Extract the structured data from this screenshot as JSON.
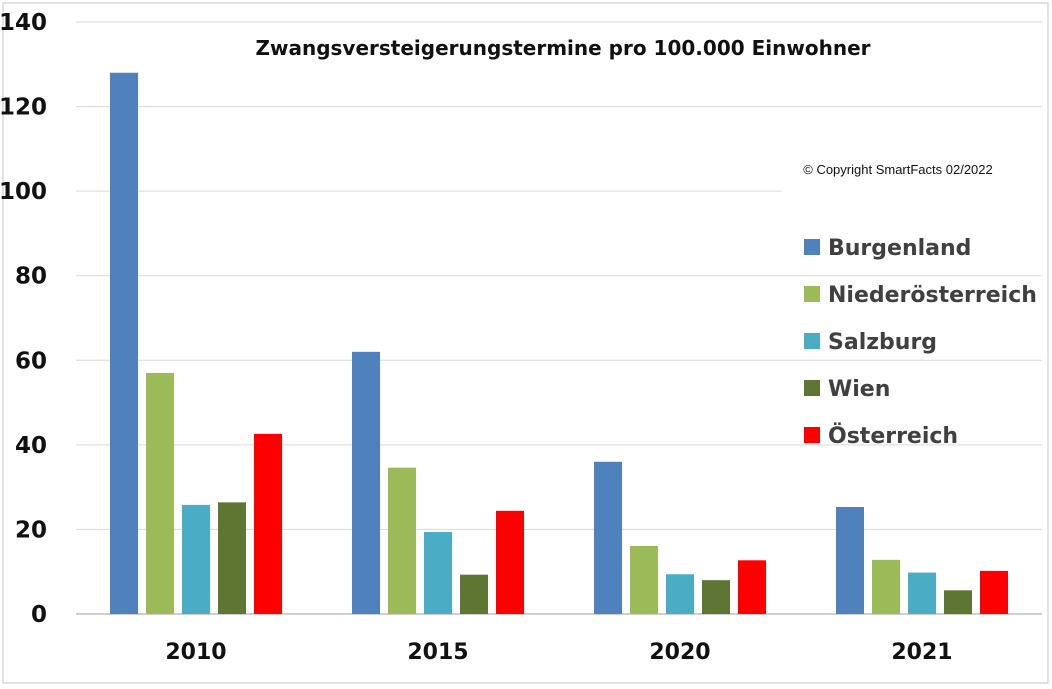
{
  "chart_data": {
    "type": "bar",
    "title": "Zwangsversteigerungstermine pro 100.000 Einwohner",
    "annotation": "© Copyright SmartFacts 02/2022",
    "categories": [
      "2010",
      "2015",
      "2020",
      "2021"
    ],
    "series": [
      {
        "name": "Burgenland",
        "color": "#4f81bd",
        "values": [
          128,
          62,
          36,
          25.3
        ]
      },
      {
        "name": "Niederösterreich",
        "color": "#9bbb59",
        "values": [
          57,
          34.6,
          16.1,
          12.8
        ]
      },
      {
        "name": "Salzburg",
        "color": "#4bacc6",
        "values": [
          25.8,
          19.4,
          9.4,
          9.8
        ]
      },
      {
        "name": "Wien",
        "color": "#5f7532",
        "values": [
          26.4,
          9.3,
          8,
          5.6
        ]
      },
      {
        "name": "Österreich",
        "color": "#ff0000",
        "values": [
          42.6,
          24.4,
          12.7,
          10.2
        ]
      }
    ],
    "ylim": [
      0,
      140
    ],
    "yticks": [
      0,
      20,
      40,
      60,
      80,
      100,
      120,
      140
    ],
    "xlabel": "",
    "ylabel": "",
    "grid": true,
    "legend_position": "right"
  }
}
